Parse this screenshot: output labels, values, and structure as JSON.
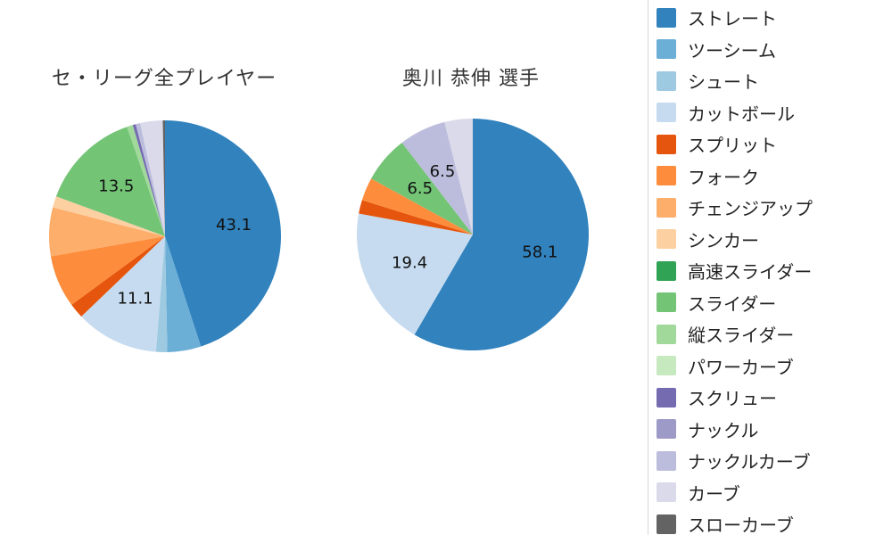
{
  "chart_data": [
    {
      "type": "pie",
      "title": "セ・リーグ全プレイヤー",
      "start_angle_deg": 0,
      "direction": "clockwise",
      "slices": [
        {
          "name": "ストレート",
          "value": 43.1,
          "color": "#3182bd",
          "label": "43.1"
        },
        {
          "name": "ツーシーム",
          "value": 4.5,
          "color": "#6baed6",
          "label": ""
        },
        {
          "name": "シュート",
          "value": 1.5,
          "color": "#9ecae1",
          "label": ""
        },
        {
          "name": "カットボール",
          "value": 11.1,
          "color": "#c6dbef",
          "label": "11.1"
        },
        {
          "name": "スプリット",
          "value": 2.0,
          "color": "#e6550d",
          "label": ""
        },
        {
          "name": "フォーク",
          "value": 7.0,
          "color": "#fd8d3c",
          "label": ""
        },
        {
          "name": "チェンジアップ",
          "value": 6.5,
          "color": "#fdae6b",
          "label": ""
        },
        {
          "name": "シンカー",
          "value": 1.5,
          "color": "#fdd0a2",
          "label": ""
        },
        {
          "name": "スライダー",
          "value": 13.5,
          "color": "#74c476",
          "label": "13.5"
        },
        {
          "name": "縦スライダー",
          "value": 0.8,
          "color": "#a1d99b",
          "label": ""
        },
        {
          "name": "スクリュー",
          "value": 0.4,
          "color": "#756bb1",
          "label": ""
        },
        {
          "name": "ナックルカーブ",
          "value": 0.6,
          "color": "#bcbddc",
          "label": ""
        },
        {
          "name": "カーブ",
          "value": 3.0,
          "color": "#dadaeb",
          "label": ""
        },
        {
          "name": "スローカーブ",
          "value": 0.3,
          "color": "#636363",
          "label": ""
        }
      ]
    },
    {
      "type": "pie",
      "title": "奥川 恭伸  選手",
      "start_angle_deg": 0,
      "direction": "clockwise",
      "slices": [
        {
          "name": "ストレート",
          "value": 58.1,
          "color": "#3182bd",
          "label": "58.1"
        },
        {
          "name": "カットボール",
          "value": 19.4,
          "color": "#c6dbef",
          "label": "19.4"
        },
        {
          "name": "スプリット",
          "value": 1.9,
          "color": "#e6550d",
          "label": ""
        },
        {
          "name": "フォーク",
          "value": 3.2,
          "color": "#fd8d3c",
          "label": ""
        },
        {
          "name": "スライダー",
          "value": 6.5,
          "color": "#74c476",
          "label": "6.5"
        },
        {
          "name": "ナックルカーブ",
          "value": 6.5,
          "color": "#bcbddc",
          "label": "6.5"
        },
        {
          "name": "カーブ",
          "value": 3.9,
          "color": "#dadaeb",
          "label": ""
        }
      ]
    }
  ],
  "legend": {
    "items": [
      {
        "label": "ストレート",
        "color": "#3182bd"
      },
      {
        "label": "ツーシーム",
        "color": "#6baed6"
      },
      {
        "label": "シュート",
        "color": "#9ecae1"
      },
      {
        "label": "カットボール",
        "color": "#c6dbef"
      },
      {
        "label": "スプリット",
        "color": "#e6550d"
      },
      {
        "label": "フォーク",
        "color": "#fd8d3c"
      },
      {
        "label": "チェンジアップ",
        "color": "#fdae6b"
      },
      {
        "label": "シンカー",
        "color": "#fdd0a2"
      },
      {
        "label": "高速スライダー",
        "color": "#31a354"
      },
      {
        "label": "スライダー",
        "color": "#74c476"
      },
      {
        "label": "縦スライダー",
        "color": "#a1d99b"
      },
      {
        "label": "パワーカーブ",
        "color": "#c7e9c0"
      },
      {
        "label": "スクリュー",
        "color": "#756bb1"
      },
      {
        "label": "ナックル",
        "color": "#9e9ac8"
      },
      {
        "label": "ナックルカーブ",
        "color": "#bcbddc"
      },
      {
        "label": "カーブ",
        "color": "#dadaeb"
      },
      {
        "label": "スローカーブ",
        "color": "#636363"
      }
    ]
  }
}
